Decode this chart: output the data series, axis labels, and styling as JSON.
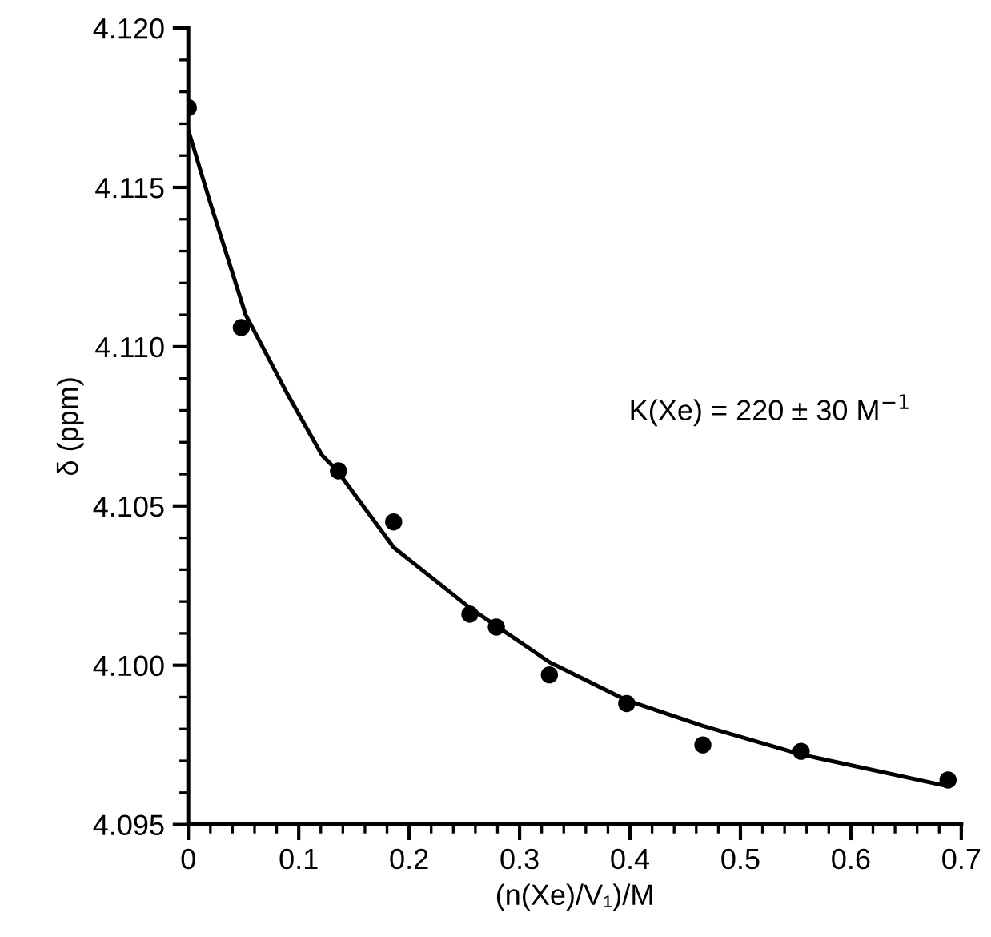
{
  "chart_data": {
    "type": "scatter",
    "xlabel": "(n(Xe)/V₁)/M",
    "ylabel": "δ (ppm)",
    "xlim": [
      0,
      0.7
    ],
    "ylim": [
      4.095,
      4.12
    ],
    "xticks": [
      0,
      0.1,
      0.2,
      0.3,
      0.4,
      0.5,
      0.6,
      0.7
    ],
    "yticks": [
      {
        "value": 4.095,
        "label": "4.095"
      },
      {
        "value": 4.1,
        "label": "4.100"
      },
      {
        "value": 4.105,
        "label": "4.105"
      },
      {
        "value": 4.11,
        "label": "4.110"
      },
      {
        "value": 4.115,
        "label": "4.115"
      },
      {
        "value": 4.12,
        "label": "4.120"
      }
    ],
    "grid": false,
    "legend": false,
    "marker": "circle",
    "annotations": [
      "K(Xe) = 220 ± 30 M$^{−1}$"
    ],
    "series": [
      {
        "color": "#000000",
        "x": [
          0,
          0.048,
          0.136,
          0.186,
          0.255,
          0.279,
          0.327,
          0.397,
          0.466,
          0.555,
          0.688
        ],
        "values": [
          4.1175,
          4.1106,
          4.1061,
          4.1045,
          4.1016,
          4.1012,
          4.0997,
          4.0988,
          4.0975,
          4.0973,
          4.0964
        ]
      },
      {
        "type": "line",
        "color": "#000000",
        "line_style": "solid",
        "marker": "none",
        "x": [
          0,
          0.02,
          0.052,
          0.09,
          0.121,
          0.135,
          0.186,
          0.255,
          0.327,
          0.397,
          0.466,
          0.555,
          0.688
        ],
        "values": [
          4.1168,
          4.1145,
          4.111,
          4.1085,
          4.1066,
          4.1061,
          4.1037,
          4.1018,
          4.1001,
          4.0989,
          4.0981,
          4.0972,
          4.0962
        ]
      }
    ]
  }
}
